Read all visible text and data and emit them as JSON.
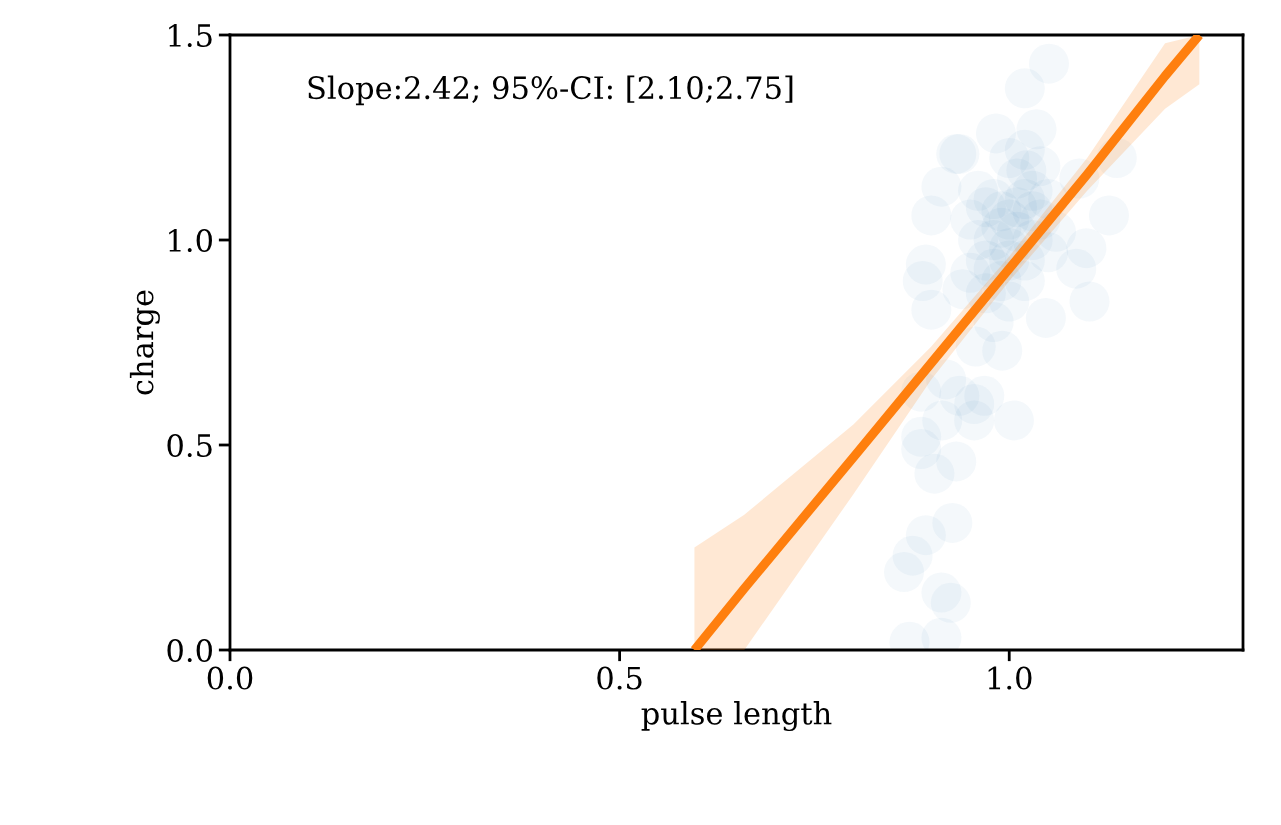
{
  "chart_data": {
    "type": "scatter",
    "xlabel": "pulse length",
    "ylabel": "charge",
    "annotations": [
      "Slope:2.42; 95%-CI: [2.10;2.75]"
    ],
    "xlim": [
      0,
      1.3
    ],
    "ylim": [
      0,
      1.5
    ],
    "xticks": [
      {
        "value": 0,
        "label": "0.0"
      },
      {
        "value": 0.5,
        "label": "0.5"
      },
      {
        "value": 1,
        "label": "1.0"
      }
    ],
    "yticks": [
      {
        "value": 0,
        "label": "0.0"
      },
      {
        "value": 0.5,
        "label": "0.5"
      },
      {
        "value": 1,
        "label": "1.0"
      },
      {
        "value": 1.5,
        "label": "1.5"
      }
    ],
    "grid": false,
    "legend": false,
    "marker": "circle",
    "series": [
      {
        "color": "#1f77b4",
        "x": [
          0.927,
          0.893,
          0.876,
          0.865,
          0.913,
          0.925,
          0.872,
          0.913,
          0.887,
          0.887,
          0.904,
          0.932,
          0.914,
          0.955,
          0.955,
          0.968,
          1.006,
          0.887,
          0.919,
          0.936,
          0.932,
          0.913,
          0.9,
          0.893,
          0.889,
          0.9,
          1.138,
          1.128,
          1.103,
          1.086,
          1.047,
          0.991,
          0.957,
          1.035,
          0.983,
          1.022,
          1.09,
          1.099,
          1.051,
          1.02,
          0.936,
          1.0,
          1.02,
          0.98,
          1.01,
          0.97,
          1.03,
          1.0,
          0.99,
          1.04,
          0.96,
          1.02,
          0.98,
          1.01,
          0.99,
          1.05,
          0.95,
          1.0,
          1.03,
          0.97,
          1.06,
          0.94,
          1.0,
          0.98,
          1.02,
          1.04,
          0.96,
          1.01,
          0.99,
          1.0,
          1.03,
          0.97,
          1.05,
          0.95,
          1.02,
          0.98
        ],
        "values": [
          0.31,
          0.28,
          0.23,
          0.19,
          0.14,
          0.115,
          0.02,
          0.03,
          0.52,
          0.49,
          0.43,
          0.46,
          0.56,
          0.56,
          0.6,
          0.62,
          0.56,
          0.63,
          0.66,
          0.62,
          1.21,
          1.13,
          1.06,
          0.94,
          0.9,
          0.83,
          1.2,
          1.06,
          0.85,
          0.93,
          0.81,
          0.73,
          0.74,
          1.27,
          1.26,
          1.17,
          1.15,
          0.98,
          1.43,
          1.37,
          1.21,
          1.05,
          1.1,
          1.0,
          1.08,
          0.95,
          1.12,
          0.98,
          1.03,
          1.05,
          1.0,
          0.95,
          1.1,
          1.15,
          0.9,
          1.1,
          0.92,
          1.2,
          1.0,
          1.08,
          1.02,
          0.88,
          0.85,
          0.8,
          0.9,
          1.18,
          1.12,
          1.02,
          1.07,
          0.95,
          1.07,
          0.87,
          0.97,
          1.05,
          1.22,
          0.93
        ]
      },
      {
        "type": "line",
        "color": "#ff7f0e",
        "marker": "none",
        "line_style": "solid",
        "x": [
          0.596,
          0.66,
          0.8,
          0.9,
          1.0,
          1.1,
          1.2,
          1.244
        ],
        "values": [
          0,
          0.15,
          0.47,
          0.7,
          0.93,
          1.16,
          1.4,
          1.5
        ],
        "lower": [
          0,
          0,
          0.38,
          0.66,
          0.9,
          1.12,
          1.32,
          1.38
        ],
        "upper": [
          0.25,
          0.33,
          0.55,
          0.74,
          0.96,
          1.2,
          1.48,
          1.5
        ]
      }
    ]
  }
}
